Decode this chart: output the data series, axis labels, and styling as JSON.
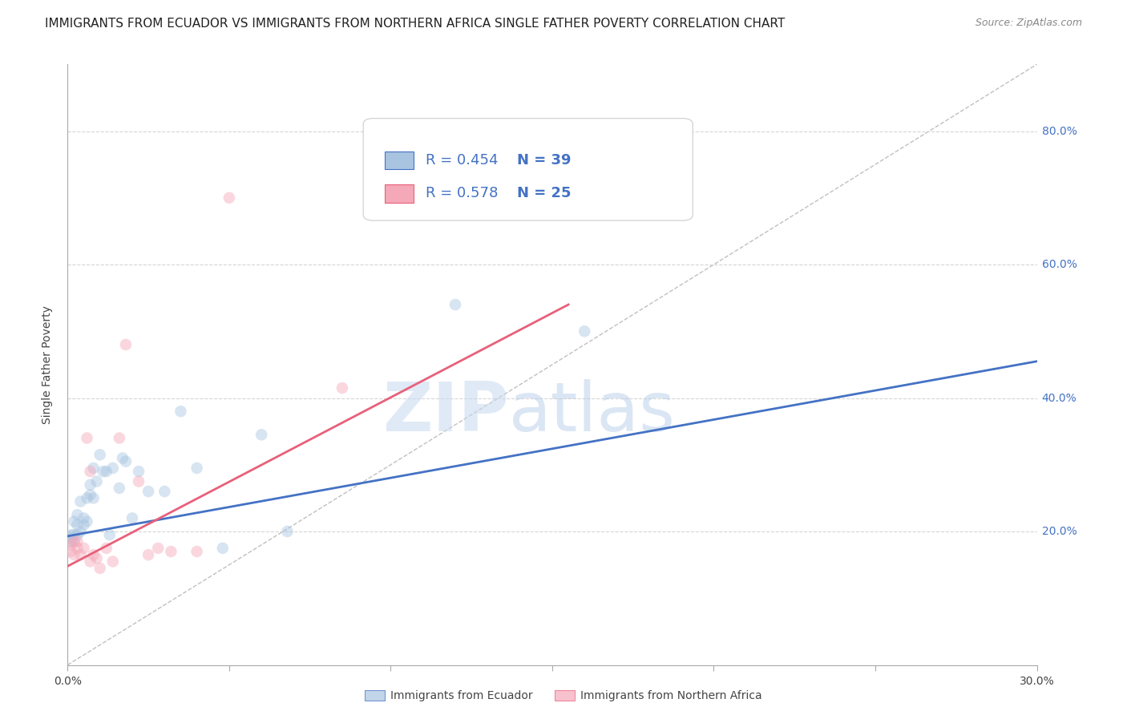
{
  "title": "IMMIGRANTS FROM ECUADOR VS IMMIGRANTS FROM NORTHERN AFRICA SINGLE FATHER POVERTY CORRELATION CHART",
  "source": "Source: ZipAtlas.com",
  "ylabel": "Single Father Poverty",
  "xlim": [
    0.0,
    0.3
  ],
  "ylim": [
    0.0,
    0.9
  ],
  "xticks": [
    0.0,
    0.05,
    0.1,
    0.15,
    0.2,
    0.25,
    0.3
  ],
  "yticks": [
    0.0,
    0.2,
    0.4,
    0.6,
    0.8
  ],
  "right_ytick_labels": [
    "80.0%",
    "60.0%",
    "40.0%",
    "20.0%"
  ],
  "legend_r1": "0.454",
  "legend_n1": "39",
  "legend_r2": "0.578",
  "legend_n2": "25",
  "color_ecuador": "#a8c4e0",
  "color_n_africa": "#f4a8b8",
  "color_line_ecuador": "#4472c4",
  "color_line_n_africa": "#e8607a",
  "color_diag": "#c0c0c0",
  "color_blue": "#4472c4",
  "color_red": "#e84040",
  "ecuador_x": [
    0.001,
    0.001,
    0.001,
    0.002,
    0.002,
    0.002,
    0.003,
    0.003,
    0.003,
    0.004,
    0.004,
    0.005,
    0.005,
    0.006,
    0.006,
    0.007,
    0.007,
    0.008,
    0.008,
    0.009,
    0.01,
    0.011,
    0.012,
    0.013,
    0.014,
    0.016,
    0.017,
    0.018,
    0.02,
    0.022,
    0.025,
    0.03,
    0.035,
    0.04,
    0.048,
    0.06,
    0.068,
    0.12,
    0.16
  ],
  "ecuador_y": [
    0.185,
    0.19,
    0.195,
    0.185,
    0.195,
    0.215,
    0.195,
    0.21,
    0.225,
    0.2,
    0.245,
    0.21,
    0.22,
    0.215,
    0.25,
    0.255,
    0.27,
    0.25,
    0.295,
    0.275,
    0.315,
    0.29,
    0.29,
    0.195,
    0.295,
    0.265,
    0.31,
    0.305,
    0.22,
    0.29,
    0.26,
    0.26,
    0.38,
    0.295,
    0.175,
    0.345,
    0.2,
    0.54,
    0.5
  ],
  "n_africa_x": [
    0.001,
    0.001,
    0.002,
    0.002,
    0.003,
    0.003,
    0.004,
    0.005,
    0.006,
    0.007,
    0.007,
    0.008,
    0.009,
    0.01,
    0.012,
    0.014,
    0.016,
    0.018,
    0.022,
    0.025,
    0.028,
    0.032,
    0.04,
    0.05,
    0.085
  ],
  "n_africa_y": [
    0.17,
    0.18,
    0.165,
    0.185,
    0.175,
    0.185,
    0.165,
    0.175,
    0.34,
    0.155,
    0.29,
    0.165,
    0.16,
    0.145,
    0.175,
    0.155,
    0.34,
    0.48,
    0.275,
    0.165,
    0.175,
    0.17,
    0.17,
    0.7,
    0.415
  ],
  "ecuador_line_x": [
    0.0,
    0.3
  ],
  "ecuador_line_y": [
    0.193,
    0.455
  ],
  "n_africa_line_x": [
    0.0,
    0.155
  ],
  "n_africa_line_y": [
    0.148,
    0.54
  ],
  "diag_line_x": [
    0.0,
    0.3
  ],
  "diag_line_y": [
    0.0,
    0.9
  ],
  "watermark_zip": "ZIP",
  "watermark_atlas": "atlas",
  "grid_color": "#d5d5d5",
  "background_color": "#ffffff",
  "title_fontsize": 11,
  "axis_label_fontsize": 10,
  "tick_fontsize": 10,
  "legend_fontsize": 13,
  "marker_size": 110,
  "marker_alpha": 0.45
}
